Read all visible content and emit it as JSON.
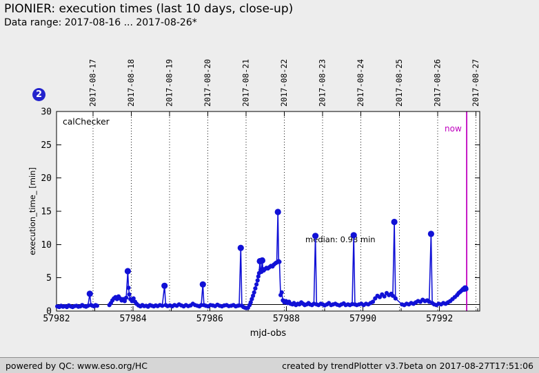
{
  "header": {
    "title": "PIONIER: execution times (last 10 days, close-up)",
    "subtitle": "Data range: 2017-08-16 ... 2017-08-26*"
  },
  "badge": {
    "label": "2"
  },
  "footer": {
    "left": "powered by QC: www.eso.org/HC",
    "right": "created by trendPlotter v3.7beta on 2017-08-27T17:51:06"
  },
  "chart_data": {
    "type": "scatter",
    "inside_label": "calChecker",
    "xlabel": "mjd-obs",
    "ylabel": "execution_time_ [min]",
    "xlim": [
      57982,
      57993.05
    ],
    "ylim": [
      0,
      30
    ],
    "x_major_ticks": [
      57982,
      57984,
      57986,
      57988,
      57990,
      57992
    ],
    "x_minor_ticks": [
      57983,
      57985,
      57987,
      57989,
      57991,
      57993
    ],
    "y_major_ticks": [
      0,
      5,
      10,
      15,
      20,
      25,
      30
    ],
    "grid": "vertical-dotted-date-lines",
    "date_gridlines": [
      {
        "label": "2017-08-17",
        "mjd": 57982.95
      },
      {
        "label": "2017-08-18",
        "mjd": 57983.95
      },
      {
        "label": "2017-08-19",
        "mjd": 57984.95
      },
      {
        "label": "2017-08-20",
        "mjd": 57985.95
      },
      {
        "label": "2017-08-21",
        "mjd": 57986.95
      },
      {
        "label": "2017-08-22",
        "mjd": 57987.95
      },
      {
        "label": "2017-08-23",
        "mjd": 57988.95
      },
      {
        "label": "2017-08-24",
        "mjd": 57989.95
      },
      {
        "label": "2017-08-25",
        "mjd": 57990.95
      },
      {
        "label": "2017-08-26",
        "mjd": 57991.95
      },
      {
        "label": "2017-08-27",
        "mjd": 57992.95
      }
    ],
    "median": {
      "value": 0.98,
      "label": "median: 0.98 min"
    },
    "now_marker": {
      "mjd": 57992.71,
      "label": "now",
      "color": "#bf00bf"
    },
    "colors": {
      "data": "#1111d6",
      "frame": "#000000",
      "plot_bg": "#ffffff",
      "grid": "#111111"
    },
    "series": [
      {
        "name": "execution_time",
        "points": [
          [
            57982.02,
            0.7
          ],
          [
            57982.07,
            0.6
          ],
          [
            57982.12,
            0.8
          ],
          [
            57982.17,
            0.65
          ],
          [
            57982.22,
            0.75
          ],
          [
            57982.27,
            0.6
          ],
          [
            57982.32,
            0.85
          ],
          [
            57982.37,
            0.7
          ],
          [
            57982.42,
            0.6
          ],
          [
            57982.47,
            0.75
          ],
          [
            57982.52,
            0.8
          ],
          [
            57982.57,
            0.65
          ],
          [
            57982.62,
            0.7
          ],
          [
            57982.67,
            0.9
          ],
          [
            57982.72,
            0.75
          ],
          [
            57982.77,
            0.65
          ],
          [
            57982.82,
            0.8
          ],
          [
            57982.87,
            2.6,
            1
          ],
          [
            57982.9,
            0.9
          ],
          [
            57982.94,
            0.8
          ],
          [
            57982.98,
            0.7
          ],
          [
            57983.02,
            0.9
          ],
          [
            57983.06,
            0.8
          ],
          [
            57983.38,
            0.9
          ],
          [
            57983.42,
            1.2
          ],
          [
            57983.46,
            1.6
          ],
          [
            57983.5,
            1.9
          ],
          [
            57983.54,
            2.1
          ],
          [
            57983.58,
            1.8
          ],
          [
            57983.62,
            2.2
          ],
          [
            57983.66,
            1.9
          ],
          [
            57983.7,
            1.6
          ],
          [
            57983.74,
            1.8
          ],
          [
            57983.78,
            1.5
          ],
          [
            57983.82,
            2.0
          ],
          [
            57983.86,
            6.0,
            1
          ],
          [
            57983.88,
            3.5
          ],
          [
            57983.9,
            2.5
          ],
          [
            57983.93,
            1.8
          ],
          [
            57983.97,
            1.5
          ],
          [
            57984.01,
            1.9
          ],
          [
            57984.05,
            1.4
          ],
          [
            57984.09,
            1.1
          ],
          [
            57984.14,
            0.85
          ],
          [
            57984.19,
            0.7
          ],
          [
            57984.24,
            0.9
          ],
          [
            57984.29,
            0.75
          ],
          [
            57984.34,
            0.8
          ],
          [
            57984.39,
            0.65
          ],
          [
            57984.44,
            0.9
          ],
          [
            57984.49,
            0.8
          ],
          [
            57984.54,
            0.7
          ],
          [
            57984.59,
            0.85
          ],
          [
            57984.64,
            0.75
          ],
          [
            57984.7,
            0.9
          ],
          [
            57984.76,
            0.8
          ],
          [
            57984.82,
            3.8,
            1
          ],
          [
            57984.85,
            0.9
          ],
          [
            57984.9,
            0.75
          ],
          [
            57984.96,
            0.85
          ],
          [
            57985.02,
            0.7
          ],
          [
            57985.08,
            0.9
          ],
          [
            57985.14,
            0.8
          ],
          [
            57985.2,
            1.0
          ],
          [
            57985.26,
            0.85
          ],
          [
            57985.32,
            0.7
          ],
          [
            57985.38,
            0.9
          ],
          [
            57985.44,
            0.75
          ],
          [
            57985.5,
            0.85
          ],
          [
            57985.56,
            1.1
          ],
          [
            57985.62,
            0.9
          ],
          [
            57985.68,
            0.8
          ],
          [
            57985.73,
            0.7
          ],
          [
            57985.78,
            0.9
          ],
          [
            57985.82,
            4.0,
            1
          ],
          [
            57985.85,
            0.9
          ],
          [
            57985.9,
            0.8
          ],
          [
            57985.96,
            0.7
          ],
          [
            57986.02,
            0.9
          ],
          [
            57986.08,
            0.85
          ],
          [
            57986.14,
            0.75
          ],
          [
            57986.2,
            0.95
          ],
          [
            57986.26,
            0.8
          ],
          [
            57986.32,
            0.7
          ],
          [
            57986.38,
            0.85
          ],
          [
            57986.44,
            0.9
          ],
          [
            57986.5,
            0.75
          ],
          [
            57986.56,
            0.8
          ],
          [
            57986.62,
            0.9
          ],
          [
            57986.68,
            0.7
          ],
          [
            57986.73,
            0.8
          ],
          [
            57986.77,
            0.85
          ],
          [
            57986.81,
            9.5,
            1
          ],
          [
            57986.84,
            0.8
          ],
          [
            57986.88,
            0.6
          ],
          [
            57986.92,
            0.5
          ],
          [
            57986.96,
            0.45
          ],
          [
            57987.0,
            0.5
          ],
          [
            57987.04,
            0.9
          ],
          [
            57987.07,
            1.3
          ],
          [
            57987.1,
            1.8
          ],
          [
            57987.13,
            2.3
          ],
          [
            57987.16,
            2.8
          ],
          [
            57987.19,
            3.4
          ],
          [
            57987.22,
            4.0
          ],
          [
            57987.25,
            4.6
          ],
          [
            57987.27,
            5.2
          ],
          [
            57987.29,
            5.7
          ],
          [
            57987.31,
            7.5,
            1
          ],
          [
            57987.33,
            6.2
          ],
          [
            57987.35,
            5.9
          ],
          [
            57987.37,
            7.6,
            1
          ],
          [
            57987.39,
            6.3
          ],
          [
            57987.41,
            6.1
          ],
          [
            57987.44,
            6.3
          ],
          [
            57987.48,
            6.5
          ],
          [
            57987.52,
            6.4
          ],
          [
            57987.56,
            6.6
          ],
          [
            57987.6,
            6.8
          ],
          [
            57987.64,
            6.7
          ],
          [
            57987.68,
            7.0
          ],
          [
            57987.72,
            7.2
          ],
          [
            57987.75,
            7.3
          ],
          [
            57987.78,
            14.9,
            1
          ],
          [
            57987.8,
            7.5
          ],
          [
            57987.82,
            7.4
          ],
          [
            57987.85,
            2.4
          ],
          [
            57987.88,
            2.8
          ],
          [
            57987.91,
            1.6
          ],
          [
            57987.95,
            1.3
          ],
          [
            57987.99,
            1.5
          ],
          [
            57988.03,
            1.2
          ],
          [
            57988.07,
            1.4
          ],
          [
            57988.11,
            1.1
          ],
          [
            57988.16,
            1.0
          ],
          [
            57988.2,
            1.2
          ],
          [
            57988.25,
            0.9
          ],
          [
            57988.3,
            1.1
          ],
          [
            57988.34,
            1.0
          ],
          [
            57988.39,
            1.3
          ],
          [
            57988.44,
            1.1
          ],
          [
            57988.48,
            0.9
          ],
          [
            57988.53,
            1.0
          ],
          [
            57988.58,
            1.2
          ],
          [
            57988.62,
            1.0
          ],
          [
            57988.67,
            0.9
          ],
          [
            57988.72,
            1.1
          ],
          [
            57988.76,
            11.3,
            1
          ],
          [
            57988.79,
            1.0
          ],
          [
            57988.84,
            0.9
          ],
          [
            57988.9,
            1.1
          ],
          [
            57988.95,
            1.0
          ],
          [
            57989.0,
            0.85
          ],
          [
            57989.06,
            1.0
          ],
          [
            57989.11,
            1.2
          ],
          [
            57989.17,
            0.9
          ],
          [
            57989.22,
            1.0
          ],
          [
            57989.28,
            1.1
          ],
          [
            57989.33,
            0.95
          ],
          [
            57989.39,
            0.85
          ],
          [
            57989.44,
            1.0
          ],
          [
            57989.5,
            1.15
          ],
          [
            57989.55,
            0.9
          ],
          [
            57989.61,
            1.0
          ],
          [
            57989.66,
            0.9
          ],
          [
            57989.72,
            1.05
          ],
          [
            57989.76,
            11.4,
            1
          ],
          [
            57989.79,
            1.0
          ],
          [
            57989.84,
            0.9
          ],
          [
            57989.9,
            1.0
          ],
          [
            57989.96,
            1.1
          ],
          [
            57990.02,
            0.9
          ],
          [
            57990.08,
            1.1
          ],
          [
            57990.14,
            1.0
          ],
          [
            57990.2,
            1.2
          ],
          [
            57990.26,
            1.4
          ],
          [
            57990.32,
            1.9
          ],
          [
            57990.38,
            2.3
          ],
          [
            57990.44,
            2.1
          ],
          [
            57990.5,
            2.5
          ],
          [
            57990.56,
            2.2
          ],
          [
            57990.62,
            2.7
          ],
          [
            57990.68,
            2.4
          ],
          [
            57990.74,
            2.6
          ],
          [
            57990.78,
            2.3
          ],
          [
            57990.82,
            13.4,
            1
          ],
          [
            57990.85,
            1.9
          ],
          [
            57991.02,
            1.0
          ],
          [
            57991.08,
            0.9
          ],
          [
            57991.14,
            1.1
          ],
          [
            57991.2,
            1.0
          ],
          [
            57991.26,
            1.2
          ],
          [
            57991.32,
            1.1
          ],
          [
            57991.38,
            1.3
          ],
          [
            57991.44,
            1.5
          ],
          [
            57991.5,
            1.4
          ],
          [
            57991.56,
            1.7
          ],
          [
            57991.62,
            1.5
          ],
          [
            57991.68,
            1.6
          ],
          [
            57991.73,
            1.4
          ],
          [
            57991.78,
            11.6,
            1
          ],
          [
            57991.81,
            1.2
          ],
          [
            57991.86,
            1.0
          ],
          [
            57991.92,
            0.9
          ],
          [
            57991.98,
            1.1
          ],
          [
            57992.04,
            1.0
          ],
          [
            57992.1,
            1.2
          ],
          [
            57992.16,
            1.1
          ],
          [
            57992.22,
            1.3
          ],
          [
            57992.28,
            1.5
          ],
          [
            57992.34,
            1.8
          ],
          [
            57992.4,
            2.1
          ],
          [
            57992.46,
            2.4
          ],
          [
            57992.5,
            2.7
          ],
          [
            57992.54,
            2.9
          ],
          [
            57992.58,
            3.1
          ],
          [
            57992.61,
            3.3
          ],
          [
            57992.64,
            3.2
          ],
          [
            57992.67,
            3.4,
            1
          ],
          [
            57992.7,
            3.3
          ]
        ]
      }
    ]
  }
}
